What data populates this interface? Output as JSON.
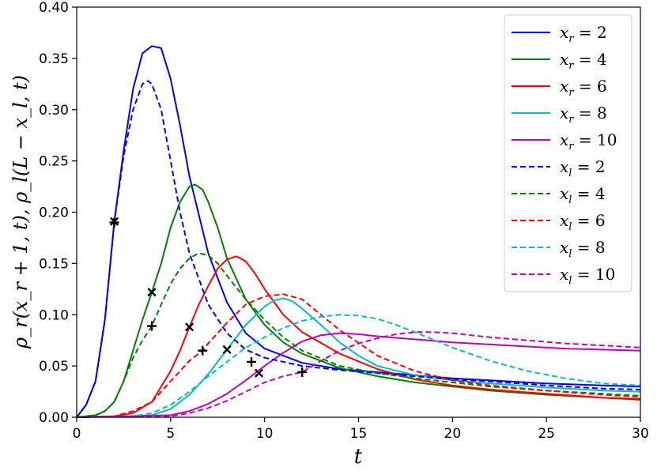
{
  "chart_data": {
    "type": "line",
    "xlabel": "t",
    "ylabel": "ρ_r(x_r + 1, t), ρ_l(L − x_l, t)",
    "xlim": [
      0,
      30
    ],
    "ylim": [
      0,
      0.4
    ],
    "xticks": [
      "0",
      "5",
      "10",
      "15",
      "20",
      "25",
      "30"
    ],
    "yticks": [
      "0.00",
      "0.05",
      "0.10",
      "0.15",
      "0.20",
      "0.25",
      "0.30",
      "0.35",
      "0.40"
    ],
    "grid": false,
    "legend_position": "top-right",
    "series": [
      {
        "name": "x_r = 2",
        "var": "x",
        "sub": "r",
        "val": "2",
        "color": "#0000ff",
        "dash": false,
        "x": [
          0,
          0.5,
          1,
          1.5,
          2,
          2.5,
          3,
          3.5,
          4,
          4.5,
          5,
          5.5,
          6,
          7,
          8,
          9,
          10,
          12,
          14,
          16,
          18,
          20,
          22,
          25,
          28,
          30
        ],
        "y": [
          0,
          0.012,
          0.035,
          0.095,
          0.19,
          0.26,
          0.32,
          0.355,
          0.362,
          0.36,
          0.33,
          0.285,
          0.235,
          0.16,
          0.112,
          0.082,
          0.067,
          0.053,
          0.047,
          0.044,
          0.041,
          0.038,
          0.036,
          0.033,
          0.031,
          0.03
        ]
      },
      {
        "name": "x_r = 4",
        "var": "x",
        "sub": "r",
        "val": "4",
        "color": "#008000",
        "dash": false,
        "x": [
          0,
          1,
          1.5,
          2,
          2.5,
          3,
          3.5,
          4,
          4.5,
          5,
          5.5,
          6,
          6.3,
          6.7,
          7,
          7.5,
          8,
          9,
          10,
          11,
          12,
          14,
          16,
          18,
          20,
          22,
          25,
          28,
          30
        ],
        "y": [
          0,
          0.002,
          0.006,
          0.015,
          0.035,
          0.065,
          0.095,
          0.122,
          0.15,
          0.185,
          0.21,
          0.225,
          0.227,
          0.222,
          0.21,
          0.185,
          0.155,
          0.115,
          0.09,
          0.073,
          0.062,
          0.048,
          0.04,
          0.034,
          0.03,
          0.026,
          0.022,
          0.019,
          0.018
        ]
      },
      {
        "name": "x_r = 6",
        "var": "x",
        "sub": "r",
        "val": "6",
        "color": "#ff0000",
        "dash": false,
        "x": [
          0,
          2,
          3,
          4,
          5,
          5.5,
          6,
          6.5,
          7,
          7.5,
          8,
          8.5,
          9,
          9.5,
          10,
          11,
          12,
          14,
          16,
          18,
          20,
          22,
          25,
          28,
          30
        ],
        "y": [
          0,
          0.001,
          0.004,
          0.015,
          0.045,
          0.065,
          0.088,
          0.11,
          0.128,
          0.145,
          0.154,
          0.157,
          0.152,
          0.14,
          0.125,
          0.1,
          0.083,
          0.062,
          0.047,
          0.037,
          0.031,
          0.027,
          0.023,
          0.019,
          0.017
        ]
      },
      {
        "name": "x_r = 8",
        "var": "x",
        "sub": "r",
        "val": "8",
        "color": "#00bfbf",
        "dash": false,
        "x": [
          0,
          3,
          4,
          5,
          6,
          7,
          8,
          9,
          10,
          10.5,
          11,
          11.5,
          12,
          13,
          14,
          15,
          16,
          18,
          20,
          22,
          25,
          28,
          30
        ],
        "y": [
          0,
          0.001,
          0.002,
          0.008,
          0.022,
          0.042,
          0.066,
          0.09,
          0.108,
          0.114,
          0.116,
          0.113,
          0.106,
          0.09,
          0.073,
          0.06,
          0.05,
          0.041,
          0.036,
          0.033,
          0.029,
          0.026,
          0.025
        ]
      },
      {
        "name": "x_r = 10",
        "var": "x",
        "sub": "r",
        "val": "10",
        "color": "#bf00bf",
        "dash": false,
        "x": [
          0,
          5,
          6,
          7,
          8,
          9,
          10,
          11,
          12,
          13,
          14,
          15,
          16,
          18,
          20,
          22,
          24,
          26,
          28,
          30
        ],
        "y": [
          0,
          0.002,
          0.006,
          0.013,
          0.023,
          0.036,
          0.05,
          0.063,
          0.074,
          0.08,
          0.082,
          0.081,
          0.079,
          0.076,
          0.073,
          0.071,
          0.069,
          0.067,
          0.066,
          0.065
        ]
      },
      {
        "name": "x_l = 2",
        "var": "x",
        "sub": "l",
        "val": "2",
        "color": "#0000ff",
        "dash": true,
        "x": [
          0,
          0.5,
          1,
          1.5,
          2,
          2.5,
          3,
          3.5,
          3.8,
          4,
          4.5,
          5,
          5.5,
          6,
          7,
          8,
          9,
          10,
          12,
          14,
          16,
          18,
          20,
          22,
          25,
          28,
          30
        ],
        "y": [
          0,
          0.012,
          0.035,
          0.095,
          0.19,
          0.255,
          0.3,
          0.325,
          0.328,
          0.325,
          0.3,
          0.25,
          0.2,
          0.16,
          0.11,
          0.082,
          0.066,
          0.058,
          0.05,
          0.046,
          0.043,
          0.04,
          0.037,
          0.035,
          0.031,
          0.028,
          0.027
        ]
      },
      {
        "name": "x_l = 4",
        "var": "x",
        "sub": "l",
        "val": "4",
        "color": "#008000",
        "dash": true,
        "x": [
          0,
          1,
          1.5,
          2,
          2.5,
          3,
          3.5,
          4,
          4.5,
          5,
          5.5,
          6,
          6.5,
          7,
          7.5,
          8,
          9,
          10,
          11,
          12,
          14,
          16,
          18,
          20,
          22,
          25,
          28,
          30
        ],
        "y": [
          0,
          0.002,
          0.006,
          0.015,
          0.035,
          0.058,
          0.075,
          0.089,
          0.11,
          0.13,
          0.145,
          0.155,
          0.16,
          0.158,
          0.15,
          0.138,
          0.115,
          0.095,
          0.078,
          0.065,
          0.05,
          0.043,
          0.038,
          0.034,
          0.03,
          0.026,
          0.023,
          0.021
        ]
      },
      {
        "name": "x_l = 6",
        "var": "x",
        "sub": "l",
        "val": "6",
        "color": "#ff0000",
        "dash": true,
        "x": [
          0,
          2,
          3,
          4,
          5,
          6,
          6.7,
          7,
          8,
          9,
          10,
          11,
          12,
          13,
          14,
          16,
          18,
          20,
          22,
          25,
          28,
          30
        ],
        "y": [
          0,
          0.001,
          0.006,
          0.015,
          0.035,
          0.055,
          0.065,
          0.072,
          0.092,
          0.11,
          0.118,
          0.12,
          0.115,
          0.1,
          0.085,
          0.06,
          0.045,
          0.036,
          0.031,
          0.026,
          0.022,
          0.02
        ]
      },
      {
        "name": "x_l = 8",
        "var": "x",
        "sub": "l",
        "val": "8",
        "color": "#00bfbf",
        "dash": true,
        "x": [
          0,
          3,
          4,
          5,
          6,
          7,
          8,
          9,
          10,
          11,
          12,
          13,
          14,
          15,
          16,
          17,
          18,
          20,
          22,
          24,
          26,
          28,
          30
        ],
        "y": [
          0,
          0.001,
          0.004,
          0.012,
          0.025,
          0.04,
          0.054,
          0.068,
          0.078,
          0.087,
          0.094,
          0.098,
          0.1,
          0.099,
          0.096,
          0.09,
          0.083,
          0.068,
          0.055,
          0.045,
          0.038,
          0.033,
          0.031
        ]
      },
      {
        "name": "x_l = 10",
        "var": "x",
        "sub": "l",
        "val": "10",
        "color": "#bf00bf",
        "dash": true,
        "x": [
          0,
          5,
          6,
          7,
          8,
          9,
          10,
          11,
          12,
          13,
          14,
          15,
          16,
          17,
          18,
          19,
          20,
          22,
          24,
          26,
          28,
          30
        ],
        "y": [
          0,
          0.001,
          0.004,
          0.009,
          0.016,
          0.025,
          0.034,
          0.04,
          0.044,
          0.055,
          0.065,
          0.072,
          0.077,
          0.081,
          0.083,
          0.083,
          0.082,
          0.078,
          0.075,
          0.072,
          0.07,
          0.068
        ]
      }
    ],
    "markers": [
      {
        "symbol": "×",
        "x": 2.0,
        "y": 0.191
      },
      {
        "symbol": "×",
        "x": 4.0,
        "y": 0.122
      },
      {
        "symbol": "×",
        "x": 6.0,
        "y": 0.088
      },
      {
        "symbol": "×",
        "x": 8.0,
        "y": 0.066
      },
      {
        "symbol": "×",
        "x": 9.7,
        "y": 0.043
      },
      {
        "symbol": "+",
        "x": 2.0,
        "y": 0.19
      },
      {
        "symbol": "+",
        "x": 4.0,
        "y": 0.089
      },
      {
        "symbol": "+",
        "x": 6.7,
        "y": 0.065
      },
      {
        "symbol": "+",
        "x": 9.3,
        "y": 0.054
      },
      {
        "symbol": "+",
        "x": 12.0,
        "y": 0.044
      }
    ]
  }
}
